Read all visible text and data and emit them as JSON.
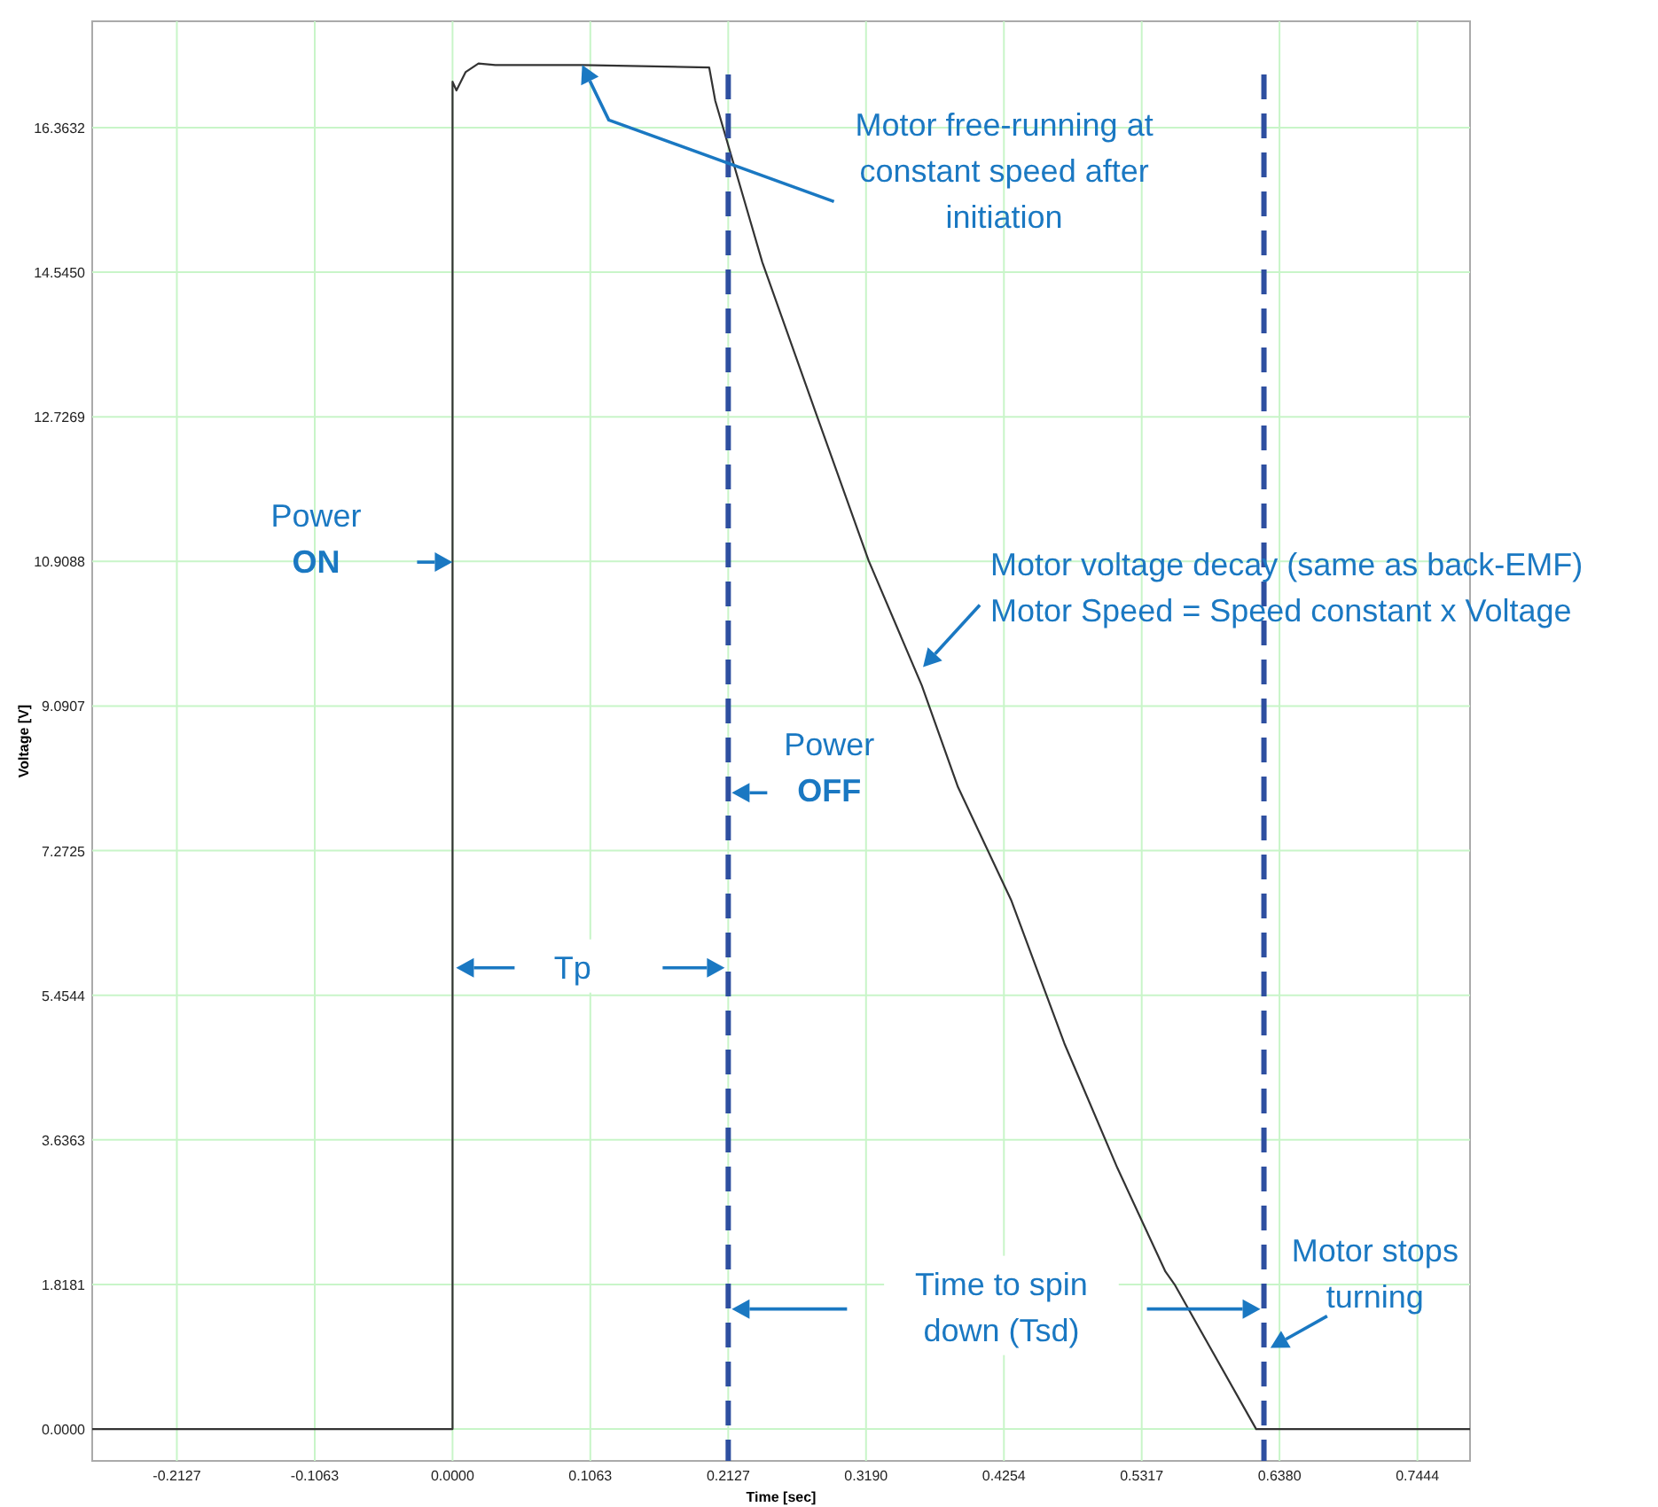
{
  "chart_data": {
    "type": "line",
    "xlabel": "Time [sec]",
    "ylabel": "Voltage [V]",
    "xlim": [
      -0.278,
      0.785
    ],
    "ylim": [
      -0.4,
      17.7
    ],
    "xticks": [
      {
        "value": -0.2127,
        "label": "-0.2127"
      },
      {
        "value": -0.1063,
        "label": "-0.1063"
      },
      {
        "value": 0,
        "label": "0.0000"
      },
      {
        "value": 0.1063,
        "label": "0.1063"
      },
      {
        "value": 0.2127,
        "label": "0.2127"
      },
      {
        "value": 0.319,
        "label": "0.3190"
      },
      {
        "value": 0.4254,
        "label": "0.4254"
      },
      {
        "value": 0.5317,
        "label": "0.5317"
      },
      {
        "value": 0.638,
        "label": "0.6380"
      },
      {
        "value": 0.7444,
        "label": "0.7444"
      }
    ],
    "yticks": [
      {
        "value": 0,
        "label": "0.0000"
      },
      {
        "value": 1.8181,
        "label": "1.8181"
      },
      {
        "value": 3.6363,
        "label": "3.6363"
      },
      {
        "value": 5.4544,
        "label": "5.4544"
      },
      {
        "value": 7.2725,
        "label": "7.2725"
      },
      {
        "value": 9.0907,
        "label": "9.0907"
      },
      {
        "value": 10.9088,
        "label": "10.9088"
      },
      {
        "value": 12.7269,
        "label": "12.7269"
      },
      {
        "value": 14.545,
        "label": "14.5450"
      },
      {
        "value": 16.3632,
        "label": "16.3632"
      }
    ],
    "grid": true,
    "series": [
      {
        "color": "#333333",
        "x": [
          -0.278,
          0,
          0,
          0.003,
          0.01,
          0.02,
          0.033,
          0.1,
          0.198,
          0.2027,
          0.239,
          0.28,
          0.321,
          0.362,
          0.39,
          0.431,
          0.472,
          0.513,
          0.55,
          0.557,
          0.62,
          0.625,
          0.785
        ],
        "values": [
          0,
          0,
          16.94,
          16.83,
          17.06,
          17.17,
          17.15,
          17.15,
          17.12,
          16.7,
          14.67,
          12.79,
          10.92,
          9.35,
          8.07,
          6.65,
          4.85,
          3.28,
          1.98,
          1.82,
          0,
          0,
          0
        ]
      }
    ],
    "ref_lines": [
      {
        "axis": "x",
        "value": 0.2127,
        "color": "#2e4fa0",
        "line_style": "dashed"
      },
      {
        "axis": "x",
        "value": 0.626,
        "color": "#2e4fa0",
        "line_style": "dashed"
      }
    ],
    "annotations": [
      {
        "text": "Power\nON",
        "x": 0,
        "y": 10.9
      },
      {
        "text": "Power\nOFF",
        "x": 0.2127,
        "y": 8.0
      },
      "Motor free-running at\nconstant speed after\ninitiation",
      {
        "text": "Motor voltage decay (same as back-EMF)\nMotor Speed = Speed constant x Voltage",
        "x": 0.363,
        "y": 9.58
      },
      "Tp",
      "Time to spin\ndown (Tsd)",
      {
        "text": "Motor stops\nturning",
        "x": 0.631,
        "y": 1.02
      }
    ]
  }
}
